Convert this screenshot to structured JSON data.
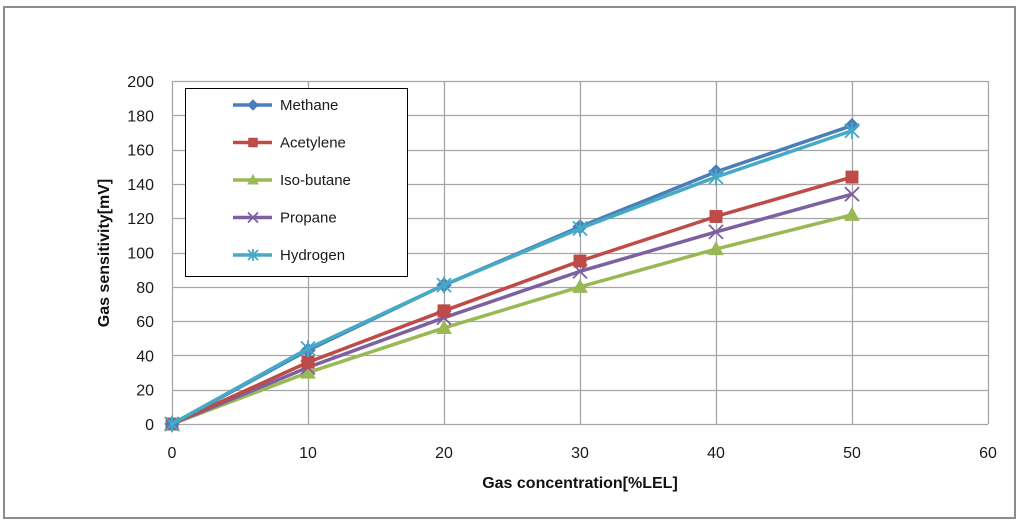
{
  "chart_data": {
    "type": "line",
    "title": "",
    "xlabel": "Gas concentration[%LEL]",
    "ylabel": "Gas sensitivity[mV]",
    "xlim": [
      0,
      60
    ],
    "ylim": [
      0,
      200
    ],
    "xticks": [
      0,
      10,
      20,
      30,
      40,
      50,
      60
    ],
    "yticks": [
      0,
      20,
      40,
      60,
      80,
      100,
      120,
      140,
      160,
      180,
      200
    ],
    "grid": true,
    "legend_position": "top-left",
    "x": [
      0,
      10,
      20,
      30,
      40,
      50
    ],
    "series": [
      {
        "name": "Methane",
        "color": "#4A7EBB",
        "marker": "diamond",
        "values": [
          0,
          43,
          81,
          115,
          147,
          174
        ]
      },
      {
        "name": "Acetylene",
        "color": "#BE4B48",
        "marker": "square",
        "values": [
          0,
          36,
          66,
          95,
          121,
          144
        ]
      },
      {
        "name": "Iso-butane",
        "color": "#98B954",
        "marker": "triangle",
        "values": [
          0,
          30,
          56,
          80,
          102,
          122
        ]
      },
      {
        "name": "Propane",
        "color": "#7D60A0",
        "marker": "x",
        "values": [
          0,
          33,
          62,
          89,
          112,
          134
        ]
      },
      {
        "name": "Hydrogen",
        "color": "#46AAC5",
        "marker": "star",
        "values": [
          0,
          44,
          81,
          114,
          144,
          171
        ]
      }
    ]
  }
}
